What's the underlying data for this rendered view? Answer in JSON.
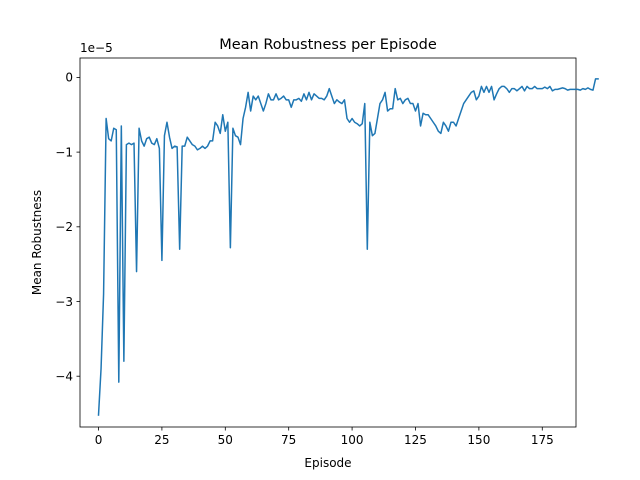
{
  "chart_data": {
    "type": "line",
    "title": "Mean Robustness per Episode",
    "xlabel": "Episode",
    "ylabel": "Mean Robustness",
    "offset_text": "1e−5",
    "xlim": [
      -7.3,
      188.3
    ],
    "ylim": [
      -4.68,
      0.26
    ],
    "x_ticks": [
      0,
      25,
      50,
      75,
      100,
      125,
      150,
      175
    ],
    "x_tick_labels": [
      "0",
      "25",
      "50",
      "75",
      "100",
      "125",
      "150",
      "175"
    ],
    "y_ticks": [
      -4,
      -3,
      -2,
      -1,
      0
    ],
    "y_tick_labels": [
      "−4",
      "−3",
      "−2",
      "−1",
      "0"
    ],
    "grid": false,
    "legend": "none",
    "line_color": "#1f77b4",
    "series": [
      {
        "x_start": 0,
        "x_step": 1,
        "y": [
          -4.52,
          -3.9,
          -2.9,
          -0.55,
          -0.82,
          -0.85,
          -0.68,
          -0.7,
          -4.08,
          -0.65,
          -3.8,
          -0.9,
          -0.88,
          -0.9,
          -0.88,
          -2.6,
          -0.68,
          -0.85,
          -0.92,
          -0.82,
          -0.8,
          -0.88,
          -0.9,
          -0.82,
          -0.95,
          -2.45,
          -0.78,
          -0.6,
          -0.8,
          -0.95,
          -0.92,
          -0.93,
          -2.3,
          -0.92,
          -0.92,
          -0.8,
          -0.85,
          -0.9,
          -0.92,
          -0.97,
          -0.95,
          -0.92,
          -0.95,
          -0.92,
          -0.85,
          -0.85,
          -0.6,
          -0.65,
          -0.75,
          -0.5,
          -0.72,
          -0.6,
          -2.28,
          -0.68,
          -0.78,
          -0.8,
          -0.9,
          -0.55,
          -0.4,
          -0.2,
          -0.45,
          -0.25,
          -0.3,
          -0.25,
          -0.35,
          -0.45,
          -0.35,
          -0.22,
          -0.3,
          -0.3,
          -0.22,
          -0.3,
          -0.28,
          -0.25,
          -0.3,
          -0.3,
          -0.4,
          -0.3,
          -0.3,
          -0.28,
          -0.32,
          -0.22,
          -0.3,
          -0.2,
          -0.3,
          -0.22,
          -0.25,
          -0.28,
          -0.28,
          -0.3,
          -0.25,
          -0.15,
          -0.25,
          -0.35,
          -0.3,
          -0.33,
          -0.35,
          -0.3,
          -0.55,
          -0.6,
          -0.55,
          -0.6,
          -0.62,
          -0.65,
          -0.62,
          -0.35,
          -2.3,
          -0.6,
          -0.78,
          -0.75,
          -0.55,
          -0.35,
          -0.3,
          -0.2,
          -0.45,
          -0.42,
          -0.42,
          -0.15,
          -0.3,
          -0.28,
          -0.35,
          -0.3,
          -0.28,
          -0.35,
          -0.35,
          -0.45,
          -0.35,
          -0.65,
          -0.48,
          -0.5,
          -0.5,
          -0.55,
          -0.6,
          -0.65,
          -0.72,
          -0.75,
          -0.6,
          -0.65,
          -0.72,
          -0.6,
          -0.6,
          -0.65,
          -0.55,
          -0.45,
          -0.35,
          -0.3,
          -0.25,
          -0.2,
          -0.18,
          -0.3,
          -0.25,
          -0.12,
          -0.2,
          -0.12,
          -0.2,
          -0.12,
          -0.3,
          -0.22,
          -0.15,
          -0.12,
          -0.12,
          -0.15,
          -0.2,
          -0.15,
          -0.15,
          -0.18,
          -0.15,
          -0.12,
          -0.18,
          -0.12,
          -0.15,
          -0.15,
          -0.12,
          -0.15,
          -0.15,
          -0.15,
          -0.13,
          -0.15,
          -0.12,
          -0.18,
          -0.16,
          -0.16,
          -0.15,
          -0.14,
          -0.15,
          -0.17,
          -0.16,
          -0.16,
          -0.16,
          -0.16,
          -0.17,
          -0.15,
          -0.16,
          -0.14,
          -0.16,
          -0.17,
          -0.02,
          -0.02
        ]
      }
    ]
  }
}
